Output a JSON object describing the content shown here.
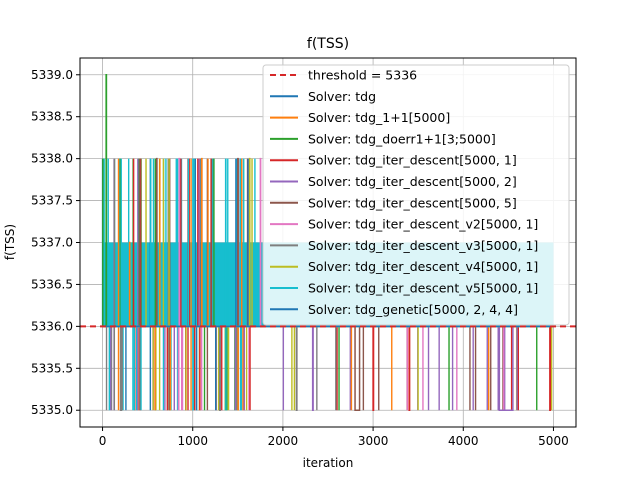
{
  "chart_data": {
    "type": "line",
    "title": "f(TSS)",
    "xlabel": "iteration",
    "ylabel": "f(TSS)",
    "xlim": [
      -250,
      5250
    ],
    "ylim": [
      5334.8,
      5339.2
    ],
    "x_ticks": [
      0,
      1000,
      2000,
      3000,
      4000,
      5000
    ],
    "y_ticks": [
      5335.0,
      5335.5,
      5336.0,
      5336.5,
      5337.0,
      5337.5,
      5338.0,
      5338.5,
      5339.0
    ],
    "x_tick_labels": [
      "0",
      "1000",
      "2000",
      "3000",
      "4000",
      "5000"
    ],
    "y_tick_labels": [
      "5335.0",
      "5335.5",
      "5336.0",
      "5336.5",
      "5337.0",
      "5337.5",
      "5338.0",
      "5338.5",
      "5339.0"
    ],
    "grid": true,
    "legend_position": "upper right",
    "threshold": {
      "label": "threshold = 5336",
      "value": 5336,
      "color": "#d62728"
    },
    "series": [
      {
        "name": "Solver: tdg",
        "color": "#1f77b4",
        "x": [
          0,
          5000
        ],
        "y": [
          5336,
          5336
        ]
      },
      {
        "name": "Solver: tdg_1+1[5000]",
        "color": "#ff7f0e",
        "x": [
          0,
          300,
          300,
          302,
          302,
          1100,
          1100,
          1102,
          1102,
          5000
        ],
        "y": [
          5336,
          5336,
          5337,
          5337,
          5336,
          5336,
          5338,
          5338,
          5336,
          5336
        ]
      },
      {
        "name": "Solver: tdg_doerr1+1[3;5000]",
        "color": "#2ca02c",
        "x": [
          0,
          40,
          40,
          43,
          43,
          5000
        ],
        "y": [
          5336,
          5336,
          5339,
          5339,
          5336,
          5336
        ]
      },
      {
        "name": "Solver: tdg_iter_descent[5000, 1]",
        "color": "#d62728",
        "x": [
          0,
          3000,
          3000,
          3005,
          3005,
          3400,
          3400,
          3405,
          3405,
          4960,
          4960,
          4965,
          4965,
          5000
        ],
        "y": [
          5336,
          5336,
          5335,
          5335,
          5336,
          5336,
          5335,
          5335,
          5336,
          5336,
          5335,
          5335,
          5336,
          5336
        ]
      },
      {
        "name": "Solver: tdg_iter_descent[5000, 2]",
        "color": "#9467bd",
        "x": [
          0,
          2330,
          2330,
          2335,
          2335,
          4400,
          4400,
          4550,
          4550,
          5000
        ],
        "y": [
          5336,
          5336,
          5335,
          5335,
          5336,
          5336,
          5335,
          5335,
          5336,
          5336
        ]
      },
      {
        "name": "Solver: tdg_iter_descent[5000, 5]",
        "color": "#8c564b",
        "x": [
          0,
          600,
          600,
          603,
          603,
          1500,
          1500,
          1503,
          1503,
          2800,
          2800,
          2850,
          2850,
          5000
        ],
        "y": [
          5336,
          5336,
          5338,
          5338,
          5336,
          5336,
          5338,
          5338,
          5336,
          5336,
          5335,
          5335,
          5336,
          5336
        ]
      },
      {
        "name": "Solver: tdg_iter_descent_v2[5000, 1]",
        "color": "#e377c2",
        "x": [
          0,
          850,
          850,
          853,
          853,
          1750,
          1750,
          1753,
          1753,
          5000
        ],
        "y": [
          5336,
          5336,
          5338,
          5338,
          5336,
          5336,
          5338,
          5338,
          5336,
          5336
        ]
      },
      {
        "name": "Solver: tdg_iter_descent_v3[5000, 1]",
        "color": "#7f7f7f",
        "x": [
          0,
          200,
          200,
          210,
          210,
          1300,
          1300,
          1305,
          1305,
          2150,
          2150,
          2155,
          2155,
          5000
        ],
        "y": [
          5336,
          5336,
          5335,
          5335,
          5336,
          5336,
          5335,
          5335,
          5336,
          5336,
          5335,
          5335,
          5336,
          5336
        ]
      },
      {
        "name": "Solver: tdg_iter_descent_v4[5000, 1]",
        "color": "#bcbd22",
        "x": [
          0,
          1630,
          1630,
          1633,
          1633,
          5000
        ],
        "y": [
          5336,
          5336,
          5338,
          5338,
          5336,
          5336
        ]
      },
      {
        "name": "Solver: tdg_iter_descent_v5[5000, 1]",
        "color": "#17becf",
        "x": [
          0,
          5000
        ],
        "y": [
          5336,
          5336
        ]
      },
      {
        "name": "Solver: tdg_genetic[5000, 2, 4, 4]",
        "color": "#1f77b4",
        "x": [
          0,
          5000
        ],
        "y": [
          5336,
          5336
        ]
      }
    ]
  }
}
